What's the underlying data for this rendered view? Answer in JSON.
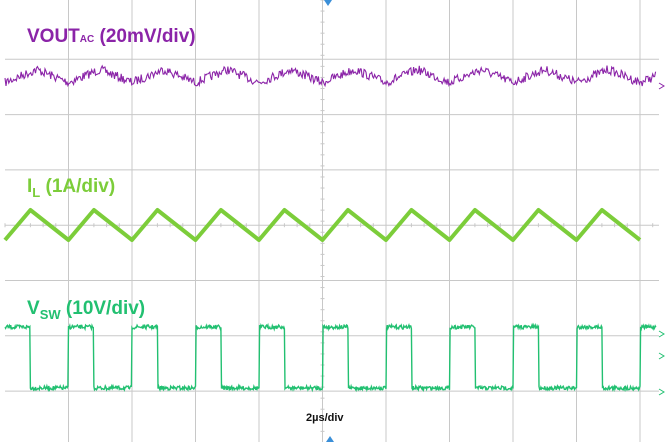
{
  "labels": {
    "vout_main": "VOUT",
    "vout_sub": "AC",
    "vout_scale": " (20mV/div)",
    "il_main": "I",
    "il_sub": "L",
    "il_scale": " (1A/div)",
    "vsw_main": "V",
    "vsw_sub": "SW",
    "vsw_scale": " (10V/div)",
    "timebase": "2µs/div"
  },
  "colors": {
    "vout": "#8b24a8",
    "il": "#7ccd3a",
    "vsw": "#22c071",
    "grid": "#c8c8c8",
    "marker": "#3a8fd8"
  },
  "chart_data": {
    "type": "line",
    "title": "",
    "xlabel": "2µs/div",
    "grid": true,
    "time_per_div_us": 2,
    "x_range_us": [
      0,
      20.5
    ],
    "switching_period_us": 2.0,
    "series": [
      {
        "name": "VOUT AC",
        "scale_per_div": "20mV/div",
        "waveform": "ripple",
        "ripple_peak_to_peak_mV": 10,
        "period_us": 2.0
      },
      {
        "name": "IL",
        "scale_per_div": "1A/div",
        "waveform": "triangle",
        "ripple_peak_to_peak_A": 0.6,
        "period_us": 2.0,
        "x": [
          0.0,
          0.8,
          2.0,
          2.8,
          4.0,
          4.8,
          6.0,
          6.8,
          8.0,
          8.8,
          10.0,
          10.8,
          12.0,
          12.8,
          14.0,
          14.8,
          16.0,
          16.8,
          18.0,
          18.8,
          20.0
        ],
        "y": [
          0.0,
          0.6,
          0.0,
          0.6,
          0.0,
          0.6,
          0.0,
          0.6,
          0.0,
          0.6,
          0.0,
          0.6,
          0.0,
          0.6,
          0.0,
          0.6,
          0.0,
          0.6,
          0.0,
          0.6,
          0.0
        ]
      },
      {
        "name": "VSW",
        "scale_per_div": "10V/div",
        "waveform": "square",
        "high_V": 12,
        "low_V": 0,
        "period_us": 2.0,
        "duty_cycle": 0.4,
        "rising_edges_us": [
          0.0,
          2.0,
          4.0,
          6.0,
          8.0,
          10.0,
          12.0,
          14.0,
          16.0,
          18.0,
          20.0
        ]
      }
    ]
  }
}
